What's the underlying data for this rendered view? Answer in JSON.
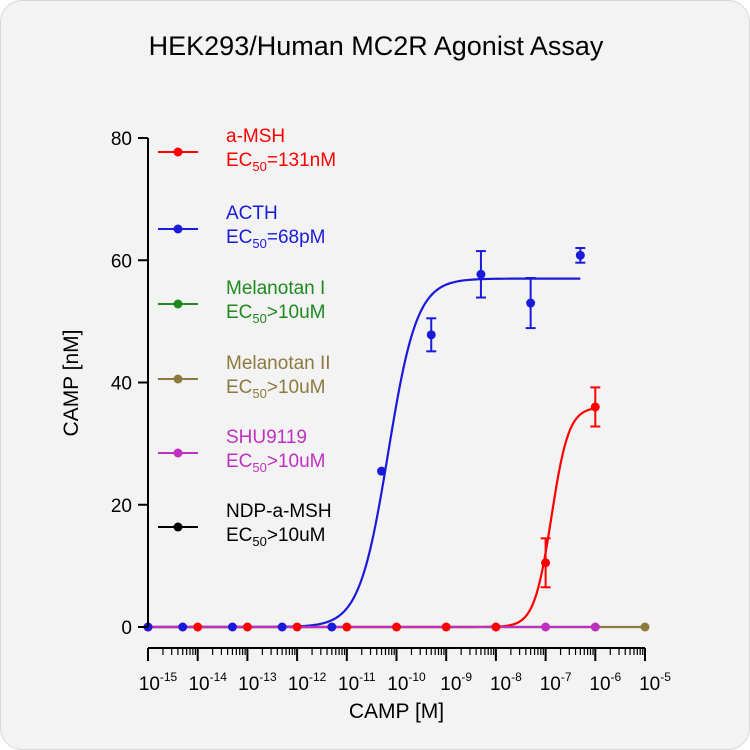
{
  "chart_data": {
    "type": "scatter",
    "title": "HEK293/Human MC2R Agonist Assay",
    "xlabel": "CAMP [M]",
    "ylabel": "CAMP [nM]",
    "x_scale": "log",
    "xlim": [
      1e-15,
      1e-05
    ],
    "ylim": [
      0,
      80
    ],
    "y_ticks": [
      0,
      20,
      40,
      60,
      80
    ],
    "x_tick_base": "10",
    "x_tick_exponents": [
      "-15",
      "-14",
      "-13",
      "-12",
      "-11",
      "-10",
      "-9",
      "-8",
      "-7",
      "-6",
      "-5"
    ],
    "grid": false,
    "legend_position": "upper-left",
    "series": [
      {
        "name": "a-MSH",
        "legend_line1": "a-MSH",
        "ec_prefix": "EC",
        "ec_sub": "50",
        "ec_value": "=131nM",
        "color": "#ff0000",
        "fit": {
          "bottom": 0,
          "top": 36,
          "ec50": 1.31e-07,
          "hill": 2.5,
          "x_from": 1e-15,
          "x_to": 1e-06
        },
        "points": [
          {
            "x": 1e-15,
            "y": 0
          },
          {
            "x": 1e-14,
            "y": 0
          },
          {
            "x": 1e-13,
            "y": 0
          },
          {
            "x": 1e-12,
            "y": 0
          },
          {
            "x": 1e-11,
            "y": 0
          },
          {
            "x": 1e-10,
            "y": 0
          },
          {
            "x": 1e-09,
            "y": 0
          },
          {
            "x": 1e-08,
            "y": 0
          },
          {
            "x": 1e-07,
            "y": 10.5,
            "err": 4
          },
          {
            "x": 1e-06,
            "y": 36,
            "err": 3.2
          }
        ]
      },
      {
        "name": "ACTH",
        "legend_line1": "ACTH",
        "ec_prefix": "EC",
        "ec_sub": "50",
        "ec_value": "=68pM",
        "color": "#1a1adb",
        "fit": {
          "bottom": 0,
          "top": 57,
          "ec50": 6.8e-11,
          "hill": 1.5,
          "x_from": 1e-15,
          "x_to": 5e-07
        },
        "points": [
          {
            "x": 1e-15,
            "y": 0
          },
          {
            "x": 5e-15,
            "y": 0
          },
          {
            "x": 5e-14,
            "y": 0
          },
          {
            "x": 5e-13,
            "y": 0
          },
          {
            "x": 5e-12,
            "y": 0
          },
          {
            "x": 5e-11,
            "y": 25.5
          },
          {
            "x": 5e-10,
            "y": 47.8,
            "err": 2.7
          },
          {
            "x": 5e-09,
            "y": 57.7,
            "err": 3.8
          },
          {
            "x": 5e-08,
            "y": 53,
            "err": 4.1
          },
          {
            "x": 5e-07,
            "y": 60.8,
            "err": 1.2
          }
        ]
      },
      {
        "name": "Melanotan I",
        "legend_line1": "Melanotan I",
        "ec_prefix": "EC",
        "ec_sub": "50",
        "ec_value": ">10uM",
        "color": "#1e8a1e",
        "fit": {
          "bottom": 0,
          "top": 0,
          "ec50": 1e-05,
          "hill": 1,
          "x_from": 1e-15,
          "x_to": 1e-06
        },
        "points": []
      },
      {
        "name": "Melanotan II",
        "legend_line1": "Melanotan II",
        "ec_prefix": "EC",
        "ec_sub": "50",
        "ec_value": ">10uM",
        "color": "#8c7a3e",
        "fit": {
          "bottom": 0,
          "top": 0,
          "ec50": 1e-05,
          "hill": 1,
          "x_from": 1e-06,
          "x_to": 1e-05
        },
        "points": [
          {
            "x": 1e-05,
            "y": 0
          }
        ]
      },
      {
        "name": "SHU9119",
        "legend_line1": "SHU9119",
        "ec_prefix": "EC",
        "ec_sub": "50",
        "ec_value": ">10uM",
        "color": "#c030c0",
        "fit": {
          "bottom": 0,
          "top": 0,
          "ec50": 1e-05,
          "hill": 1,
          "x_from": 1e-15,
          "x_to": 1e-06
        },
        "points": [
          {
            "x": 1e-07,
            "y": 0
          },
          {
            "x": 1e-06,
            "y": 0
          }
        ]
      },
      {
        "name": "NDP-a-MSH",
        "legend_line1": "NDP-a-MSH",
        "ec_prefix": "EC",
        "ec_sub": "50",
        "ec_value": ">10uM",
        "color": "#000000",
        "fit": null,
        "points": []
      }
    ]
  }
}
